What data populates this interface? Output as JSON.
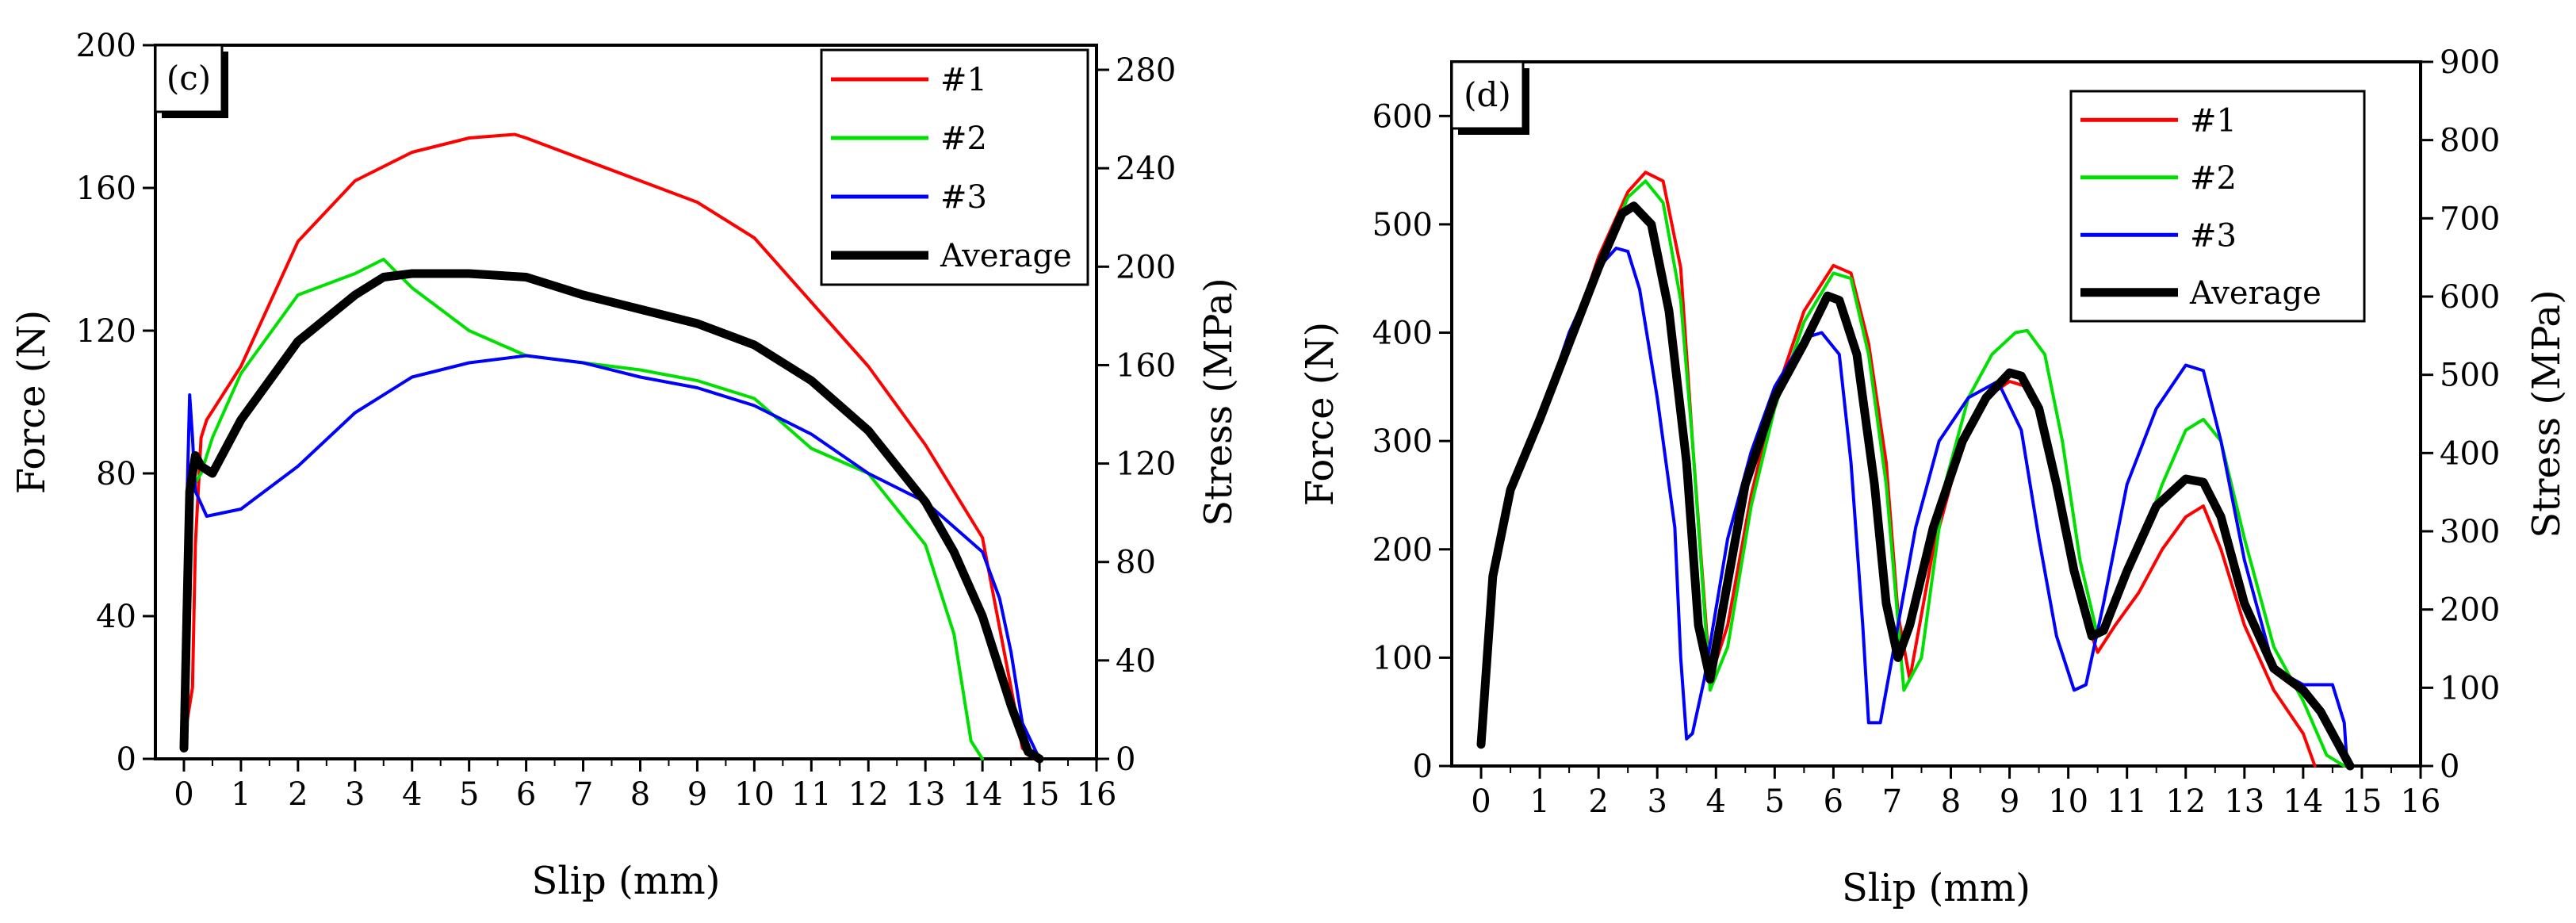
{
  "colors": {
    "s1": "#ff0000",
    "s2": "#00e000",
    "s3": "#0000ff",
    "avg": "#000000"
  },
  "chart_data": [
    {
      "type": "line",
      "panel_label": "(c)",
      "xlabel": "Slip (mm)",
      "ylabel": "Force (N)",
      "y2label": "Stress (MPa)",
      "xlim": [
        -0.5,
        16
      ],
      "ylim": [
        0,
        200
      ],
      "y2lim": [
        0,
        290
      ],
      "xticks": [
        "0",
        "1",
        "2",
        "3",
        "4",
        "5",
        "6",
        "7",
        "8",
        "9",
        "10",
        "11",
        "12",
        "13",
        "14",
        "15",
        "16"
      ],
      "yticks": [
        "0",
        "40",
        "80",
        "120",
        "160",
        "200"
      ],
      "y2ticks": [
        "0",
        "40",
        "80",
        "120",
        "160",
        "200",
        "240",
        "280"
      ],
      "legend_position": "top-right",
      "series": [
        {
          "name": "#1",
          "color_key": "s1",
          "x": [
            0,
            0.15,
            0.2,
            0.3,
            0.4,
            1,
            2,
            3,
            4,
            5,
            5.8,
            6,
            7,
            8,
            9,
            10,
            11,
            12,
            13,
            14,
            14.5,
            14.7,
            14.9,
            15
          ],
          "y": [
            5,
            20,
            60,
            90,
            95,
            110,
            145,
            162,
            170,
            174,
            175,
            174,
            168,
            162,
            156,
            146,
            128,
            110,
            88,
            62,
            20,
            3,
            0,
            0
          ]
        },
        {
          "name": "#2",
          "color_key": "s2",
          "x": [
            0,
            0.05,
            0.1,
            0.3,
            0.5,
            1,
            2,
            3,
            3.5,
            4,
            5,
            6,
            7,
            8,
            9,
            10,
            11,
            12,
            13,
            13.5,
            13.8,
            14
          ],
          "y": [
            3,
            50,
            75,
            80,
            90,
            108,
            130,
            136,
            140,
            132,
            120,
            113,
            111,
            109,
            106,
            101,
            87,
            80,
            60,
            35,
            5,
            0
          ]
        },
        {
          "name": "#3",
          "color_key": "s3",
          "x": [
            0,
            0.05,
            0.1,
            0.15,
            0.2,
            0.4,
            1,
            2,
            3,
            4,
            5,
            6,
            7,
            8,
            9,
            10,
            11,
            12,
            13,
            14,
            14.3,
            14.5,
            14.7,
            15
          ],
          "y": [
            10,
            70,
            102,
            90,
            75,
            68,
            70,
            82,
            97,
            107,
            111,
            113,
            111,
            107,
            104,
            99,
            91,
            80,
            72,
            58,
            45,
            30,
            10,
            0
          ]
        },
        {
          "name": "Average",
          "color_key": "avg",
          "x": [
            0,
            0.05,
            0.1,
            0.2,
            0.3,
            0.5,
            1,
            2,
            3,
            3.5,
            4,
            5,
            6,
            7,
            8,
            9,
            10,
            11,
            12,
            13,
            13.5,
            14,
            14.5,
            14.8,
            15
          ],
          "y": [
            3,
            40,
            75,
            85,
            82,
            80,
            95,
            117,
            130,
            135,
            136,
            136,
            135,
            130,
            126,
            122,
            116,
            106,
            92,
            72,
            58,
            40,
            15,
            2,
            0
          ]
        }
      ]
    },
    {
      "type": "line",
      "panel_label": "(d)",
      "xlabel": "Slip (mm)",
      "ylabel": "Force (N)",
      "y2label": "Stress (MPa)",
      "xlim": [
        -0.5,
        16
      ],
      "ylim": [
        0,
        650
      ],
      "y2lim": [
        0,
        900
      ],
      "xticks": [
        "0",
        "1",
        "2",
        "3",
        "4",
        "5",
        "6",
        "7",
        "8",
        "9",
        "10",
        "11",
        "12",
        "13",
        "14",
        "15",
        "16"
      ],
      "yticks": [
        "0",
        "100",
        "200",
        "300",
        "400",
        "500",
        "600"
      ],
      "y2ticks": [
        "0",
        "100",
        "200",
        "300",
        "400",
        "500",
        "600",
        "700",
        "800",
        "900"
      ],
      "legend_position": "top-right",
      "series": [
        {
          "name": "#1",
          "color_key": "s1",
          "x": [
            0,
            0.2,
            0.5,
            1,
            1.5,
            2,
            2.5,
            2.8,
            3.1,
            3.4,
            3.6,
            3.9,
            4.2,
            4.6,
            5,
            5.5,
            6,
            6.3,
            6.6,
            6.9,
            7.1,
            7.3,
            7.7,
            8.2,
            8.6,
            9,
            9.3,
            9.6,
            9.9,
            10.2,
            10.5,
            10.8,
            11.2,
            11.6,
            12,
            12.3,
            12.6,
            13,
            13.5,
            14,
            14.2
          ],
          "y": [
            20,
            180,
            260,
            320,
            390,
            470,
            530,
            548,
            540,
            460,
            300,
            80,
            130,
            250,
            340,
            420,
            462,
            455,
            390,
            280,
            140,
            80,
            200,
            300,
            340,
            355,
            350,
            310,
            220,
            150,
            105,
            130,
            160,
            200,
            230,
            240,
            200,
            130,
            70,
            30,
            0
          ]
        },
        {
          "name": "#2",
          "color_key": "s2",
          "x": [
            0,
            0.2,
            0.5,
            1,
            1.5,
            2,
            2.5,
            2.8,
            3.1,
            3.4,
            3.6,
            3.9,
            4.2,
            4.6,
            5,
            5.5,
            6,
            6.3,
            6.6,
            6.9,
            7.2,
            7.5,
            7.9,
            8.3,
            8.7,
            9.1,
            9.3,
            9.6,
            9.9,
            10.2,
            10.5,
            10.8,
            11.2,
            11.6,
            12,
            12.3,
            12.6,
            13,
            13.5,
            14,
            14.4,
            14.7
          ],
          "y": [
            20,
            170,
            255,
            320,
            390,
            460,
            525,
            540,
            520,
            430,
            300,
            70,
            110,
            240,
            330,
            410,
            455,
            450,
            380,
            260,
            70,
            100,
            260,
            340,
            380,
            400,
            402,
            380,
            300,
            190,
            120,
            150,
            200,
            260,
            310,
            320,
            300,
            210,
            110,
            60,
            10,
            0
          ]
        },
        {
          "name": "#3",
          "color_key": "s3",
          "x": [
            0,
            0.2,
            0.5,
            1,
            1.5,
            2,
            2.3,
            2.5,
            2.7,
            3,
            3.3,
            3.4,
            3.5,
            3.6,
            3.8,
            4.2,
            4.6,
            5,
            5.5,
            5.8,
            6.1,
            6.3,
            6.5,
            6.6,
            6.8,
            7,
            7.4,
            7.8,
            8.3,
            8.8,
            9.2,
            9.5,
            9.8,
            10.1,
            10.3,
            10.6,
            11,
            11.5,
            12,
            12.3,
            12.6,
            13,
            13.5,
            14,
            14.5,
            14.7,
            14.75
          ],
          "y": [
            20,
            170,
            255,
            320,
            400,
            460,
            478,
            475,
            440,
            340,
            220,
            100,
            25,
            30,
            80,
            210,
            290,
            350,
            395,
            400,
            380,
            280,
            130,
            40,
            40,
            100,
            220,
            300,
            340,
            355,
            310,
            210,
            120,
            70,
            75,
            150,
            260,
            330,
            370,
            365,
            300,
            190,
            90,
            75,
            75,
            40,
            0
          ]
        },
        {
          "name": "Average",
          "color_key": "avg",
          "x": [
            0,
            0.2,
            0.5,
            1,
            1.5,
            2,
            2.4,
            2.6,
            2.9,
            3.2,
            3.5,
            3.7,
            3.9,
            4.1,
            4.5,
            5,
            5.5,
            5.9,
            6.1,
            6.4,
            6.7,
            6.9,
            7.1,
            7.3,
            7.7,
            8.2,
            8.6,
            9,
            9.2,
            9.5,
            9.8,
            10.1,
            10.4,
            10.6,
            11,
            11.5,
            12,
            12.3,
            12.6,
            13,
            13.5,
            14,
            14.3,
            14.6,
            14.8
          ],
          "y": [
            20,
            175,
            255,
            320,
            390,
            460,
            510,
            517,
            500,
            420,
            280,
            130,
            80,
            140,
            260,
            340,
            390,
            434,
            430,
            380,
            260,
            150,
            100,
            130,
            220,
            300,
            340,
            363,
            360,
            330,
            260,
            180,
            120,
            125,
            180,
            240,
            265,
            262,
            230,
            150,
            90,
            70,
            50,
            20,
            0
          ]
        }
      ]
    }
  ]
}
